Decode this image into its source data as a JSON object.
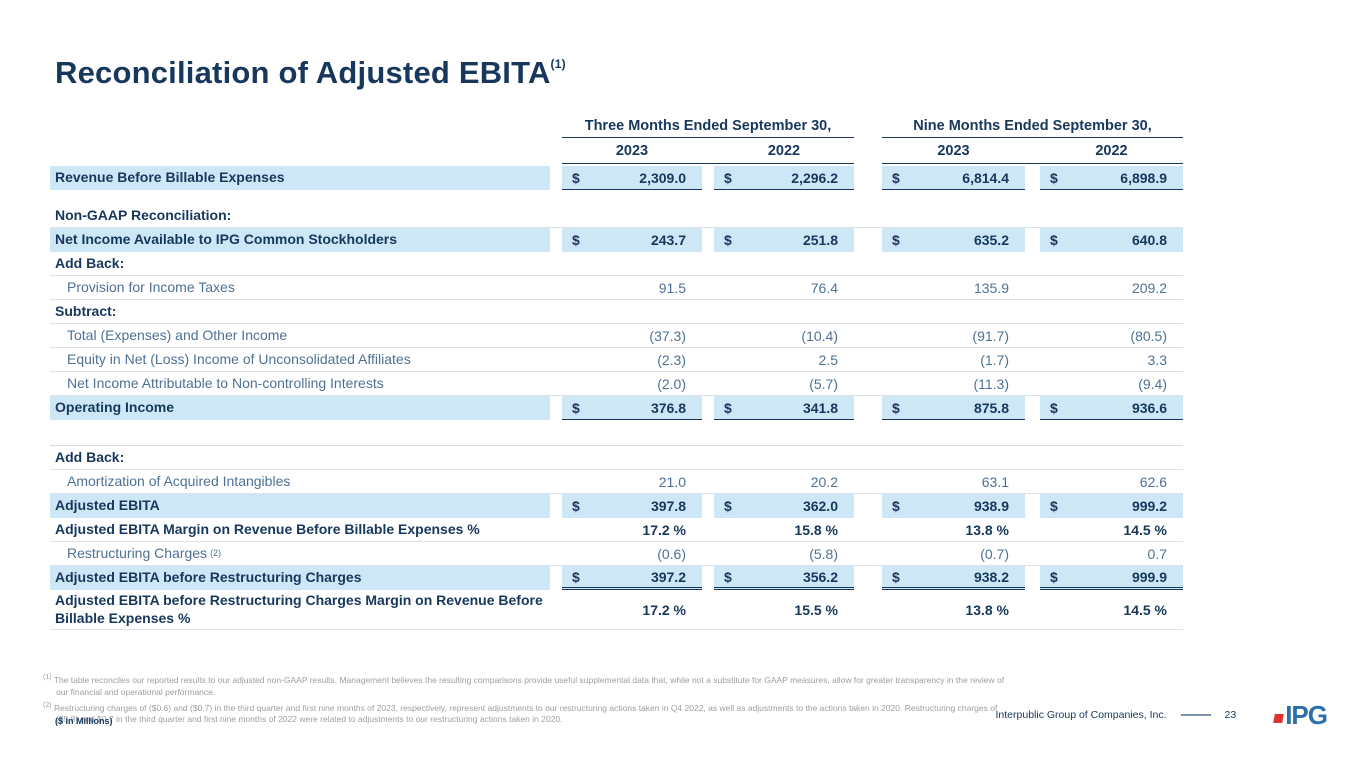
{
  "slide": {
    "title": "Reconciliation of Adjusted EBITA",
    "title_footnote_marker": "(1)",
    "units_note": "($ in Millions)"
  },
  "table": {
    "currency_symbol": "$",
    "column_groups": [
      {
        "label": "Three Months Ended September 30,",
        "years": [
          "2023",
          "2022"
        ]
      },
      {
        "label": "Nine Months Ended September 30,",
        "years": [
          "2023",
          "2022"
        ]
      }
    ],
    "rows": [
      {
        "kind": "highlight",
        "label": "Revenue Before Billable Expenses",
        "dollar": true,
        "values": [
          "2,309.0",
          "2,296.2",
          "6,814.4",
          "6,898.9"
        ],
        "rule": "single"
      },
      {
        "kind": "spacer",
        "h": 14
      },
      {
        "kind": "section",
        "label": "Non-GAAP Reconciliation:"
      },
      {
        "kind": "highlight",
        "label": "Net Income Available to IPG Common Stockholders",
        "dollar": true,
        "values": [
          "243.7",
          "251.8",
          "635.2",
          "640.8"
        ]
      },
      {
        "kind": "section",
        "label": "Add Back:"
      },
      {
        "kind": "item",
        "label": "Provision for Income Taxes",
        "values": [
          "91.5",
          "76.4",
          "135.9",
          "209.2"
        ]
      },
      {
        "kind": "section",
        "label": "Subtract:"
      },
      {
        "kind": "item",
        "label": "Total (Expenses) and Other Income",
        "values": [
          "(37.3)",
          "(10.4)",
          "(91.7)",
          "(80.5)"
        ]
      },
      {
        "kind": "item",
        "label": "Equity in Net (Loss) Income of Unconsolidated Affiliates",
        "values": [
          "(2.3)",
          "2.5",
          "(1.7)",
          "3.3"
        ]
      },
      {
        "kind": "item",
        "label": "Net Income Attributable to Non-controlling Interests",
        "values": [
          "(2.0)",
          "(5.7)",
          "(11.3)",
          "(9.4)"
        ]
      },
      {
        "kind": "highlight",
        "label": "Operating Income",
        "dollar": true,
        "values": [
          "376.8",
          "341.8",
          "875.8",
          "936.6"
        ],
        "rule": "single"
      },
      {
        "kind": "spacer",
        "h": 26,
        "divider": true
      },
      {
        "kind": "section",
        "label": "Add Back:"
      },
      {
        "kind": "item",
        "label": "Amortization of Acquired Intangibles",
        "values": [
          "21.0",
          "20.2",
          "63.1",
          "62.6"
        ]
      },
      {
        "kind": "highlight",
        "label": "Adjusted EBITA",
        "dollar": true,
        "values": [
          "397.8",
          "362.0",
          "938.9",
          "999.2"
        ]
      },
      {
        "kind": "bold",
        "label": "Adjusted EBITA Margin on Revenue Before Billable Expenses %",
        "values": [
          "17.2 %",
          "15.8 %",
          "13.8 %",
          "14.5 %"
        ]
      },
      {
        "kind": "item",
        "label": "Restructuring Charges",
        "sup": "(2)",
        "values": [
          "(0.6)",
          "(5.8)",
          "(0.7)",
          "0.7"
        ]
      },
      {
        "kind": "highlight",
        "label": "Adjusted EBITA before Restructuring Charges",
        "dollar": true,
        "values": [
          "397.2",
          "356.2",
          "938.2",
          "999.9"
        ],
        "rule": "double"
      },
      {
        "kind": "bold",
        "label": "Adjusted EBITA before Restructuring Charges Margin on Revenue Before Billable Expenses %",
        "values": [
          "17.2 %",
          "15.5 %",
          "13.8 %",
          "14.5 %"
        ]
      }
    ]
  },
  "footnotes": [
    {
      "marker": "(1)",
      "text": "The table reconciles our reported results to our adjusted non-GAAP results. Management believes the resulting comparisons provide useful supplemental data that, while not a substitute for GAAP measures, allow for greater transparency in the review of our financial and operational performance."
    },
    {
      "marker": "(2)",
      "text": "Restructuring charges of ($0.6) and ($0.7) in the third quarter and first nine months of 2023, respectively, represent adjustments to our restructuring actions taken in Q4 2022, as well as adjustments to the actions taken in 2020. Restructuring charges of ($5.8) and $0.7 in the third quarter and first nine months of 2022 were related to adjustments to our restructuring actions taken in 2020."
    }
  ],
  "footer": {
    "company": "Interpublic Group of Companies, Inc.",
    "page_number": "23",
    "logo_text": "IPG"
  },
  "colors": {
    "navy": "#17375d",
    "highlight": "#cde7f6",
    "body_text": "#4f7195",
    "logo_blue": "#2c6fad",
    "logo_red": "#e1332d"
  }
}
